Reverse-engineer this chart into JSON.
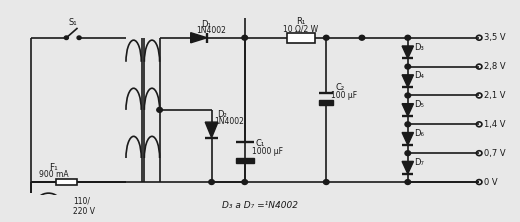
{
  "background_color": "#e8e8e8",
  "fig_width": 5.2,
  "fig_height": 2.22,
  "dpi": 100,
  "components": {
    "S1_label": "S₁",
    "F1_label": "F₁",
    "F1_value": "900 mA",
    "D1_label": "D₁",
    "D1_value": "1N4002",
    "D2_label": "D₂",
    "D2_value": "1N4002",
    "R1_label": "R₁",
    "R1_value": "10 Ω/2 W",
    "C1_label": "C₁",
    "C1_value": "1000 μF",
    "C2_label": "C₂",
    "C2_value": "100 μF",
    "mains_voltage": "110/\n220 V",
    "footer_label": "D₃ a D₇ =¹N4002",
    "out_voltages": [
      "3,5 V",
      "2,8 V",
      "2,1 V",
      "1,4 V",
      "0,7 V",
      "0 V"
    ],
    "d_labels": [
      "D₃",
      "D₄",
      "D₅",
      "D₆",
      "D₇"
    ]
  },
  "line_color": "#1a1a1a",
  "line_width": 1.2
}
